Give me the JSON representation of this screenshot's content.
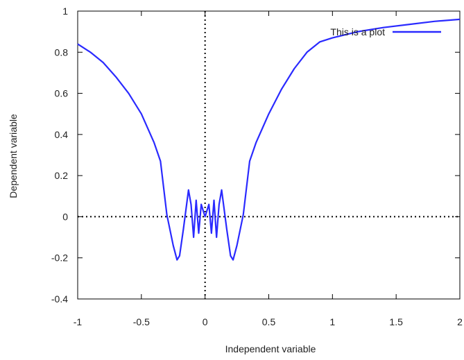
{
  "chart_data": {
    "type": "line",
    "xlabel": "Independent variable",
    "ylabel": "Dependent variable",
    "xlim": [
      -1,
      2
    ],
    "ylim": [
      -0.4,
      1
    ],
    "xticks": [
      -1,
      -0.5,
      0,
      0.5,
      1,
      1.5,
      2
    ],
    "yticks": [
      -0.4,
      -0.2,
      0,
      0.2,
      0.4,
      0.6,
      0.8,
      1
    ],
    "xtick_labels": [
      "-1",
      "-0.5",
      "0",
      "0.5",
      "1",
      "1.5",
      "2"
    ],
    "ytick_labels": [
      "-0.4",
      "-0.2",
      "0",
      "0.2",
      "0.4",
      "0.6",
      "0.8",
      "1"
    ],
    "grid": false,
    "zero_lines": "dotted",
    "legend_position": "top-right",
    "series": [
      {
        "name": "This is a plot",
        "color": "#2a2aff",
        "function": "y = 1 - x*x + x*x*sin(1/x) (approx)",
        "x": [
          -1,
          -0.9,
          -0.8,
          -0.7,
          -0.6,
          -0.5,
          -0.4,
          -0.35,
          -0.3,
          -0.25,
          -0.22,
          -0.2,
          -0.17,
          -0.13,
          -0.11,
          -0.09,
          -0.07,
          -0.05,
          -0.03,
          0,
          0.03,
          0.05,
          0.07,
          0.09,
          0.11,
          0.13,
          0.17,
          0.2,
          0.22,
          0.25,
          0.3,
          0.35,
          0.4,
          0.5,
          0.6,
          0.7,
          0.8,
          0.9,
          1.0,
          1.2,
          1.4,
          1.6,
          1.8,
          2.0
        ],
        "y": [
          0.84,
          0.8,
          0.75,
          0.68,
          0.6,
          0.5,
          0.36,
          0.27,
          0.01,
          -0.14,
          -0.21,
          -0.19,
          -0.06,
          0.13,
          0.06,
          -0.1,
          0.08,
          -0.08,
          0.06,
          0.0,
          0.06,
          -0.08,
          0.08,
          -0.1,
          0.06,
          0.13,
          -0.06,
          -0.19,
          -0.21,
          -0.14,
          0.01,
          0.27,
          0.36,
          0.5,
          0.62,
          0.72,
          0.8,
          0.85,
          0.87,
          0.9,
          0.92,
          0.935,
          0.95,
          0.96
        ]
      }
    ]
  }
}
